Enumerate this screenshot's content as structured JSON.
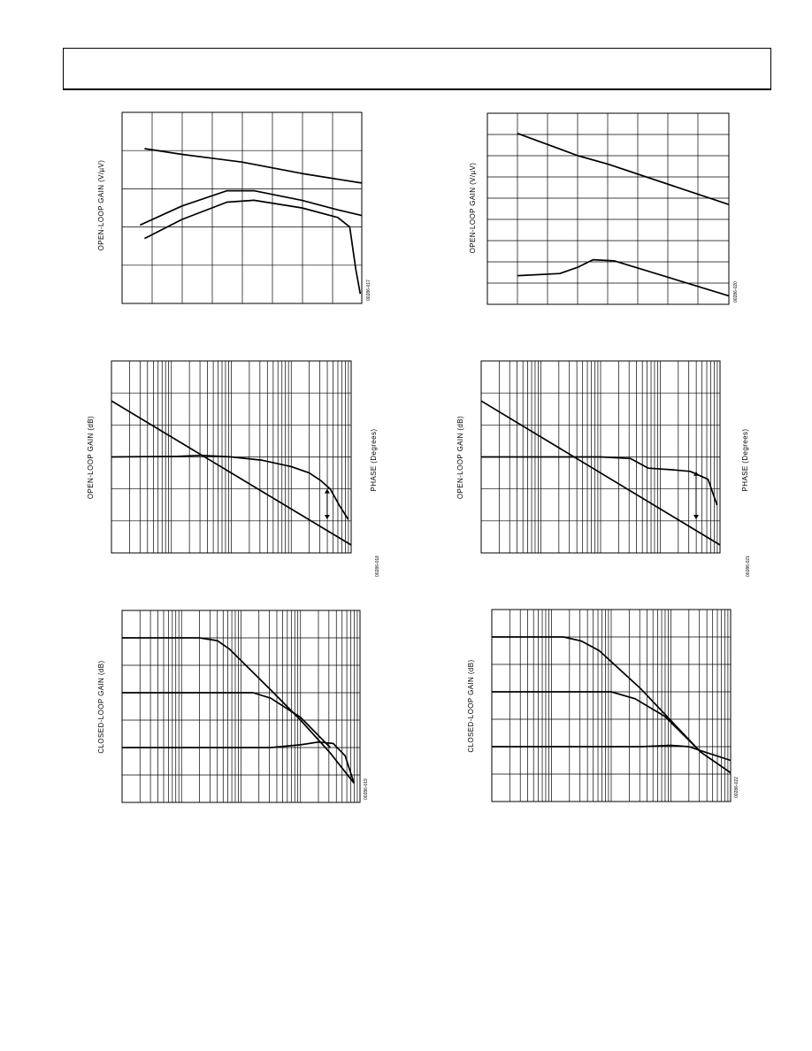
{
  "page": {
    "header_text": ""
  },
  "figures": [
    {
      "id": "fig-a",
      "ylabel": "OPEN-LOOP GAIN (V/µV)",
      "code": "00286-017",
      "chart_data": {
        "type": "line",
        "title": "",
        "xlabel": "",
        "ylabel": "OPEN-LOOP GAIN (V/µV)",
        "x_scale": "linear",
        "xlim": [
          0,
          8
        ],
        "ylim": [
          0,
          5
        ],
        "grid": true,
        "series": [
          {
            "x": [
              0.75,
              2,
              4,
              6,
              8
            ],
            "values": [
              4.05,
              3.9,
              3.7,
              3.4,
              3.15
            ]
          },
          {
            "x": [
              0.6,
              2,
              3.5,
              4.4,
              6,
              7.2,
              8
            ],
            "values": [
              2.05,
              2.55,
              2.95,
              2.95,
              2.7,
              2.45,
              2.3
            ]
          },
          {
            "x": [
              0.75,
              2,
              3.5,
              4.4,
              6,
              7.2,
              7.6,
              7.8,
              7.95
            ],
            "values": [
              1.7,
              2.2,
              2.65,
              2.7,
              2.5,
              2.25,
              2.0,
              0.9,
              0.25
            ]
          }
        ]
      }
    },
    {
      "id": "fig-b",
      "ylabel": "OPEN-LOOP GAIN (V/µV)",
      "code": "00286-020",
      "chart_data": {
        "type": "line",
        "title": "",
        "xlabel": "",
        "ylabel": "OPEN-LOOP GAIN (V/µV)",
        "x_scale": "linear",
        "xlim": [
          0,
          8
        ],
        "ylim": [
          0,
          9
        ],
        "grid": true,
        "series": [
          {
            "x": [
              1,
              3,
              4,
              8
            ],
            "values": [
              8.05,
              7.0,
              6.6,
              4.7
            ]
          },
          {
            "x": [
              1,
              2.4,
              3,
              3.5,
              4.2,
              8
            ],
            "values": [
              1.35,
              1.45,
              1.75,
              2.1,
              2.05,
              0.4
            ]
          }
        ]
      }
    },
    {
      "id": "fig-c",
      "ylabel": "OPEN-LOOP GAIN (dB)",
      "y2label": "PHASE (Degrees)",
      "code": "00286-018",
      "chart_data": {
        "type": "line",
        "title": "",
        "xlabel": "",
        "ylabel": "OPEN-LOOP GAIN (dB)",
        "y2label": "PHASE (Degrees)",
        "x_scale": "log",
        "xlim": [
          0,
          4
        ],
        "ylim": [
          0,
          6
        ],
        "grid": true,
        "series": [
          {
            "x": [
              0,
              4
            ],
            "values": [
              4.75,
              0.25
            ]
          },
          {
            "x": [
              0,
              1.1,
              1.5,
              2.0,
              2.5,
              3.0,
              3.3,
              3.5,
              3.65,
              3.8,
              3.95
            ],
            "values": [
              3.0,
              3.02,
              3.05,
              3.0,
              2.9,
              2.7,
              2.5,
              2.25,
              2.0,
              1.5,
              1.05
            ]
          }
        ]
      }
    },
    {
      "id": "fig-d",
      "ylabel": "OPEN-LOOP GAIN (dB)",
      "y2label": "PHASE (Degrees)",
      "code": "00286-021",
      "chart_data": {
        "type": "line",
        "title": "",
        "xlabel": "",
        "ylabel": "OPEN-LOOP GAIN (dB)",
        "y2label": "PHASE (Degrees)",
        "x_scale": "log",
        "xlim": [
          0,
          4
        ],
        "ylim": [
          0,
          6
        ],
        "grid": true,
        "series": [
          {
            "x": [
              0,
              4
            ],
            "values": [
              4.75,
              0.25
            ]
          },
          {
            "x": [
              0,
              2.0,
              2.5,
              2.8,
              3.2,
              3.5,
              3.8,
              3.95
            ],
            "values": [
              3.0,
              3.0,
              2.95,
              2.65,
              2.6,
              2.55,
              2.3,
              1.5
            ]
          }
        ]
      }
    },
    {
      "id": "fig-e",
      "ylabel": "CLOSED-LOOP GAIN (dB)",
      "code": "00286-019",
      "chart_data": {
        "type": "line",
        "title": "",
        "xlabel": "",
        "ylabel": "CLOSED-LOOP GAIN (dB)",
        "x_scale": "log",
        "xlim": [
          0,
          4
        ],
        "ylim": [
          0,
          7
        ],
        "grid": true,
        "series": [
          {
            "x": [
              0,
              1.3,
              1.6,
              1.8,
              2.5,
              3.0,
              3.5,
              3.9
            ],
            "values": [
              6.0,
              6.0,
              5.9,
              5.6,
              4.1,
              3.0,
              1.8,
              0.7
            ]
          },
          {
            "x": [
              0,
              2.2,
              2.5,
              3.0,
              3.5
            ],
            "values": [
              4.0,
              4.0,
              3.8,
              3.1,
              2.0
            ]
          },
          {
            "x": [
              0,
              2.5,
              3.0,
              3.3,
              3.55,
              3.75,
              3.9
            ],
            "values": [
              2.0,
              2.0,
              2.1,
              2.2,
              2.15,
              1.7,
              0.7
            ]
          }
        ]
      }
    },
    {
      "id": "fig-f",
      "ylabel": "CLOSED-LOOP GAIN (dB)",
      "code": "00286-022",
      "chart_data": {
        "type": "line",
        "title": "",
        "xlabel": "",
        "ylabel": "CLOSED-LOOP GAIN (dB)",
        "x_scale": "log",
        "xlim": [
          0,
          4
        ],
        "ylim": [
          0,
          7
        ],
        "grid": true,
        "series": [
          {
            "x": [
              0,
              1.2,
              1.5,
              1.8,
              2.5,
              3.0,
              3.5,
              4.0
            ],
            "values": [
              6.0,
              6.0,
              5.85,
              5.5,
              4.1,
              2.95,
              1.8,
              1.05
            ]
          },
          {
            "x": [
              0,
              2.0,
              2.4,
              2.9,
              3.5
            ],
            "values": [
              4.0,
              4.0,
              3.75,
              3.1,
              1.8
            ]
          },
          {
            "x": [
              0,
              2.5,
              3.0,
              3.3,
              3.5,
              4.0
            ],
            "values": [
              2.0,
              2.0,
              2.05,
              2.0,
              1.85,
              1.5
            ]
          }
        ]
      }
    }
  ]
}
